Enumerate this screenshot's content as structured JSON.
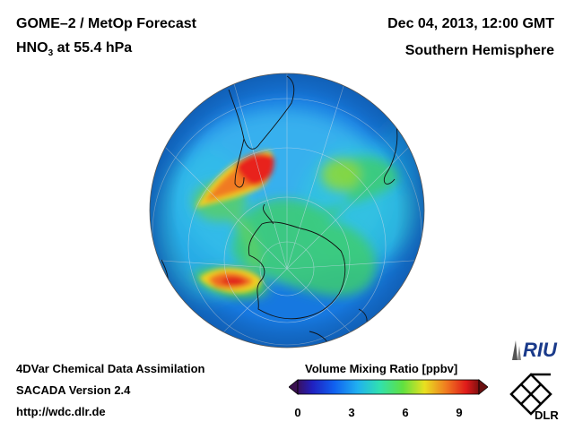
{
  "header": {
    "title_line1": "GOME–2 / MetOp Forecast",
    "species": "HNO",
    "species_sub": "3",
    "level": " at 55.4 hPa",
    "datetime": "Dec 04, 2013, 12:00 GMT",
    "region": "Southern Hemisphere"
  },
  "footer": {
    "line1": "4DVar Chemical Data Assimilation",
    "line2": "SACADA Version 2.4",
    "line3": "http://wdc.dlr.de"
  },
  "colorbar": {
    "label": "Volume Mixing Ratio [ppbv]",
    "ticks": [
      "0",
      "3",
      "6",
      "9"
    ],
    "min": 0,
    "max": 10
  },
  "logos": {
    "riu": "RIU",
    "dlr": "DLR"
  },
  "colors": {
    "background": "#1a7be0",
    "high": "#e0201a",
    "mid": "#2ec820",
    "yellow": "#e8e020"
  }
}
